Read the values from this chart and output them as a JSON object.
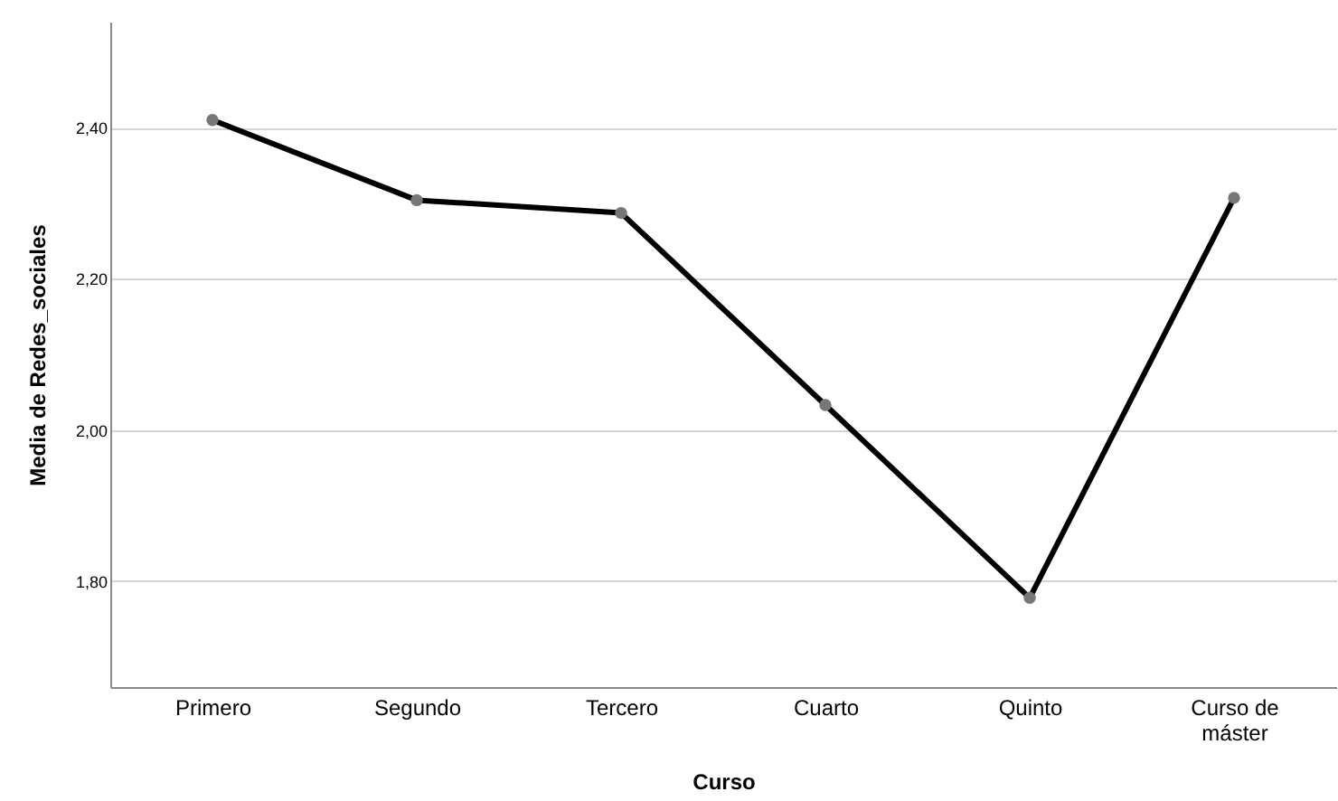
{
  "chart_data": {
    "type": "line",
    "xlabel": "Curso",
    "ylabel": "Media de Redes_sociales",
    "categories": [
      "Primero",
      "Segundo",
      "Tercero",
      "Cuarto",
      "Quinto",
      "Curso de máster"
    ],
    "series": [
      {
        "color": "#000000",
        "values": [
          2.41,
          2.304,
          2.287,
          2.033,
          1.778,
          2.307
        ]
      }
    ],
    "ylim": [
      1.66,
      2.54
    ],
    "yticks": [
      {
        "value": 1.8,
        "label": "1,80"
      },
      {
        "value": 2.0,
        "label": "2,00"
      },
      {
        "value": 2.2,
        "label": "2,20"
      },
      {
        "value": 2.4,
        "label": "2,40"
      }
    ],
    "grid": "y",
    "marker": "circle",
    "line_style": "solid"
  }
}
